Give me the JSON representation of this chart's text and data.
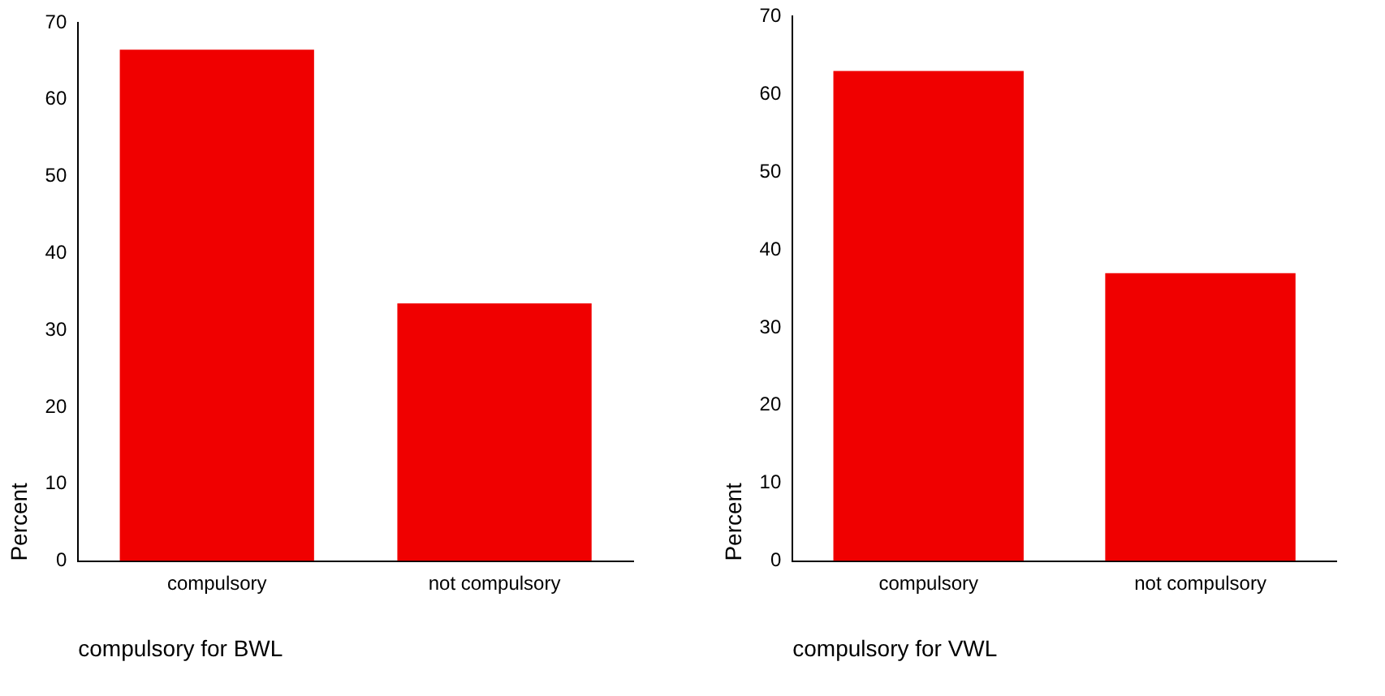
{
  "chart_data": [
    {
      "type": "bar",
      "categories": [
        "compulsory",
        "not compulsory"
      ],
      "values": [
        66.5,
        33.5
      ],
      "color": "#f00000",
      "xlabel": "compulsory for BWL",
      "ylabel": "Percent",
      "ylim": [
        0,
        70
      ],
      "yticks": [
        0,
        10,
        20,
        30,
        40,
        50,
        60,
        70
      ],
      "grid": false,
      "legend": false
    },
    {
      "type": "bar",
      "categories": [
        "compulsory",
        "not compulsory"
      ],
      "values": [
        63,
        37
      ],
      "color": "#f00000",
      "xlabel": "compulsory for VWL",
      "ylabel": "Percent",
      "ylim": [
        0,
        70
      ],
      "yticks": [
        0,
        10,
        20,
        30,
        40,
        50,
        60,
        70
      ],
      "grid": false,
      "legend": false
    }
  ]
}
